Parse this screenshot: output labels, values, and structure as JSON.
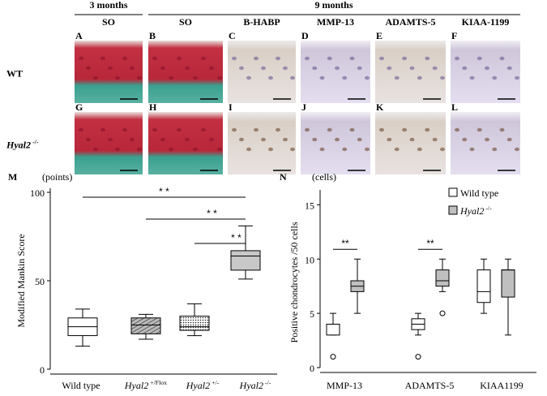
{
  "header": {
    "months3": "3 months",
    "months9": "9 months",
    "columns": [
      "SO",
      "SO",
      "B-HABP",
      "MMP-13",
      "ADAMTS-5",
      "KIAA-1199"
    ]
  },
  "rows": [
    {
      "label": "WT",
      "panels": [
        "A",
        "B",
        "C",
        "D",
        "E",
        "F"
      ]
    },
    {
      "label": "Hyal2",
      "sup": "-/-",
      "panels": [
        "G",
        "H",
        "I",
        "J",
        "K",
        "L"
      ]
    }
  ],
  "panel_m": {
    "letter": "M",
    "unit": "(points)",
    "ylabel": "Modified Mankin Score",
    "ylim": [
      0,
      100
    ],
    "yticks": [
      0,
      50,
      100
    ],
    "categories": [
      {
        "label": "Wild type"
      },
      {
        "label": "Hyal2",
        "sup": "+/Flox"
      },
      {
        "label": "Hyal2",
        "sup": "+/-"
      },
      {
        "label": "Hyal2",
        "sup": "-/-"
      }
    ],
    "boxes": [
      {
        "min": 13,
        "q1": 19,
        "median": 24,
        "q3": 29,
        "max": 34
      },
      {
        "min": 17,
        "q1": 20,
        "median": 25,
        "q3": 29,
        "max": 31
      },
      {
        "min": 19,
        "q1": 22,
        "median": 24,
        "q3": 30,
        "max": 37
      },
      {
        "min": 51,
        "q1": 56,
        "median": 64,
        "q3": 67,
        "max": 81
      }
    ],
    "significance": [
      "* *",
      "* *",
      "* *"
    ]
  },
  "panel_n": {
    "letter": "N",
    "unit": "(cells)",
    "ylabel": "Positive chondrocytes /50 cells",
    "ylim": [
      0,
      16
    ],
    "yticks": [
      0,
      5,
      10,
      15
    ],
    "categories": [
      "MMP-13",
      "ADAMTS-5",
      "KIAA1199"
    ],
    "series": [
      {
        "name": "Wild type",
        "color": "#ffffff",
        "boxes": [
          {
            "min": 3,
            "q1": 3,
            "median": 4,
            "q3": 4,
            "max": 5,
            "outliers": [
              1
            ]
          },
          {
            "min": 3,
            "q1": 3.5,
            "median": 4,
            "q3": 4.5,
            "max": 5,
            "outliers": [
              1
            ]
          },
          {
            "min": 5,
            "q1": 6,
            "median": 7,
            "q3": 9,
            "max": 10,
            "outliers": []
          }
        ]
      },
      {
        "name": "Hyal2",
        "sup": "-/-",
        "color": "#bfbfbf",
        "boxes": [
          {
            "min": 5,
            "q1": 7,
            "median": 7.5,
            "q3": 8,
            "max": 10,
            "outliers": []
          },
          {
            "min": 7,
            "q1": 7.5,
            "median": 8,
            "q3": 9,
            "max": 10,
            "outliers": [
              5
            ]
          },
          {
            "min": 3,
            "q1": 6.5,
            "median": 9,
            "q3": 9,
            "max": 10,
            "outliers": []
          }
        ]
      }
    ],
    "significance": [
      "**",
      "**"
    ]
  }
}
